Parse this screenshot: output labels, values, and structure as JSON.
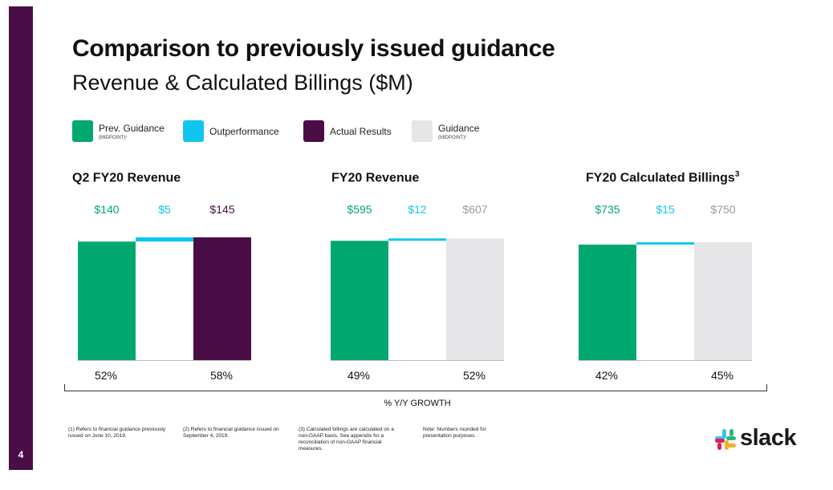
{
  "page_number": "4",
  "title": "Comparison to previously issued guidance",
  "subtitle": "Revenue & Calculated Billings ($M)",
  "legend": [
    {
      "label": "Prev. Guidance",
      "sub": "(MIDPOINT)¹",
      "color": "#00a870"
    },
    {
      "label": "Outperformance",
      "sub": "",
      "color": "#10c6f0"
    },
    {
      "label": "Actual Results",
      "sub": "",
      "color": "#4a0d45"
    },
    {
      "label": "Guidance",
      "sub": "(MIDPOINT)²",
      "color": "#e6e5e7"
    }
  ],
  "label_colors": {
    "prev": "#00a870",
    "out": "#10c6f0",
    "actual": "#4a0d45",
    "guidance": "#999999"
  },
  "chart_data": [
    {
      "type": "bar",
      "title": "Q2 FY20 Revenue",
      "title_sup": "",
      "categories": [
        "Prev. Guidance",
        "Outperformance",
        "Actual Results"
      ],
      "values": [
        140,
        5,
        145
      ],
      "value_labels": [
        "$140",
        "$5",
        "$145"
      ],
      "bar_kinds": [
        "prev",
        "out",
        "actual"
      ],
      "growth_labels": [
        "52%",
        "58%"
      ],
      "ymax": 180
    },
    {
      "type": "bar",
      "title": "FY20 Revenue",
      "title_sup": "",
      "categories": [
        "Prev. Guidance",
        "Outperformance",
        "Guidance"
      ],
      "values": [
        595,
        12,
        607
      ],
      "value_labels": [
        "$595",
        "$12",
        "$607"
      ],
      "bar_kinds": [
        "prev",
        "out",
        "guidance"
      ],
      "growth_labels": [
        "49%",
        "52%"
      ],
      "ymax": 760
    },
    {
      "type": "bar",
      "title": "FY20 Calculated Billings",
      "title_sup": "3",
      "categories": [
        "Prev. Guidance",
        "Outperformance",
        "Guidance"
      ],
      "values": [
        735,
        15,
        750
      ],
      "value_labels": [
        "$735",
        "$15",
        "$750"
      ],
      "bar_kinds": [
        "prev",
        "out",
        "guidance"
      ],
      "growth_labels": [
        "42%",
        "45%"
      ],
      "ymax": 970
    }
  ],
  "bracket_label": "% Y/Y GROWTH",
  "footnotes": [
    "(1) Refers to financial guidance previously issued on June 10, 2019.",
    "(2) Refers to financial guidance issued on September 4, 2019.",
    "(3) Calculated billings are calculated on a non-GAAP basis. See appendix for a reconciliation of non-GAAP financial measures.",
    "Note: Numbers rounded for presentation purposes."
  ],
  "logo": {
    "text": "slack",
    "icon": "slack-logo-icon"
  }
}
